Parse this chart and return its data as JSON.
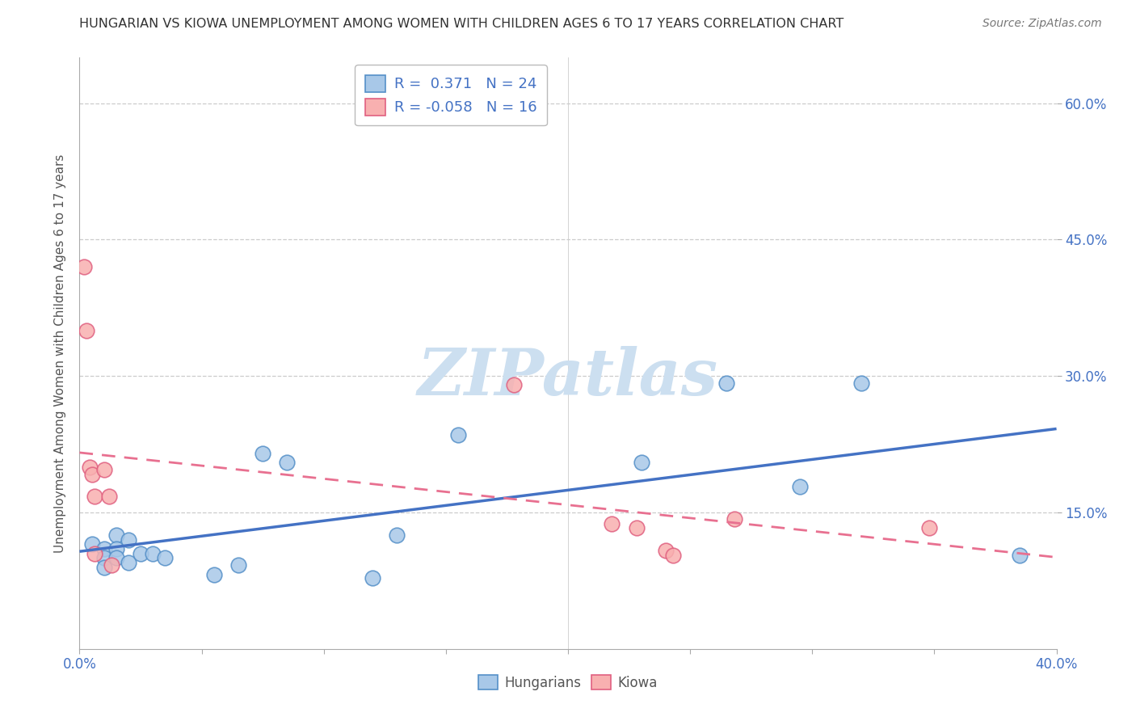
{
  "title": "HUNGARIAN VS KIOWA UNEMPLOYMENT AMONG WOMEN WITH CHILDREN AGES 6 TO 17 YEARS CORRELATION CHART",
  "source": "Source: ZipAtlas.com",
  "ylabel": "Unemployment Among Women with Children Ages 6 to 17 years",
  "xlim": [
    0.0,
    0.4
  ],
  "ylim": [
    -0.02,
    0.65
  ],
  "plot_ylim": [
    0.0,
    0.65
  ],
  "xticks": [
    0.0,
    0.05,
    0.1,
    0.15,
    0.2,
    0.25,
    0.3,
    0.35,
    0.4
  ],
  "xtick_labels_show": {
    "0.0": "0.0%",
    "0.4": "40.0%"
  },
  "ytick_values": [
    0.15,
    0.3,
    0.45,
    0.6
  ],
  "ytick_labels": [
    "15.0%",
    "30.0%",
    "45.0%",
    "60.0%"
  ],
  "gridline_values": [
    0.15,
    0.3,
    0.45,
    0.6
  ],
  "vline_x": 0.2,
  "blue_color": "#a8c8e8",
  "blue_edge": "#5590c8",
  "pink_color": "#f8b0b0",
  "pink_edge": "#e06080",
  "line_blue": "#4472c4",
  "line_pink": "#e87090",
  "legend_r_blue": "0.371",
  "legend_n_blue": "24",
  "legend_r_pink": "-0.058",
  "legend_n_pink": "16",
  "blue_points": [
    [
      0.005,
      0.115
    ],
    [
      0.01,
      0.11
    ],
    [
      0.01,
      0.1
    ],
    [
      0.01,
      0.09
    ],
    [
      0.015,
      0.125
    ],
    [
      0.015,
      0.11
    ],
    [
      0.015,
      0.1
    ],
    [
      0.02,
      0.095
    ],
    [
      0.02,
      0.12
    ],
    [
      0.025,
      0.105
    ],
    [
      0.03,
      0.105
    ],
    [
      0.035,
      0.1
    ],
    [
      0.055,
      0.082
    ],
    [
      0.065,
      0.092
    ],
    [
      0.075,
      0.215
    ],
    [
      0.085,
      0.205
    ],
    [
      0.12,
      0.078
    ],
    [
      0.13,
      0.125
    ],
    [
      0.155,
      0.235
    ],
    [
      0.23,
      0.205
    ],
    [
      0.265,
      0.292
    ],
    [
      0.295,
      0.178
    ],
    [
      0.32,
      0.292
    ],
    [
      0.385,
      0.103
    ]
  ],
  "pink_points": [
    [
      0.002,
      0.42
    ],
    [
      0.003,
      0.35
    ],
    [
      0.004,
      0.2
    ],
    [
      0.005,
      0.192
    ],
    [
      0.006,
      0.168
    ],
    [
      0.006,
      0.105
    ],
    [
      0.01,
      0.197
    ],
    [
      0.012,
      0.168
    ],
    [
      0.013,
      0.092
    ],
    [
      0.178,
      0.29
    ],
    [
      0.218,
      0.138
    ],
    [
      0.228,
      0.133
    ],
    [
      0.24,
      0.108
    ],
    [
      0.243,
      0.103
    ],
    [
      0.268,
      0.143
    ],
    [
      0.348,
      0.133
    ]
  ],
  "watermark": "ZIPatlas",
  "watermark_color": "#ccdff0",
  "background_color": "#ffffff",
  "title_color": "#333333",
  "source_color": "#777777",
  "axis_label_color": "#555555",
  "tick_label_color": "#4472c4",
  "legend_text_color": "#4472c4",
  "grid_color": "#cccccc",
  "spine_color": "#aaaaaa"
}
